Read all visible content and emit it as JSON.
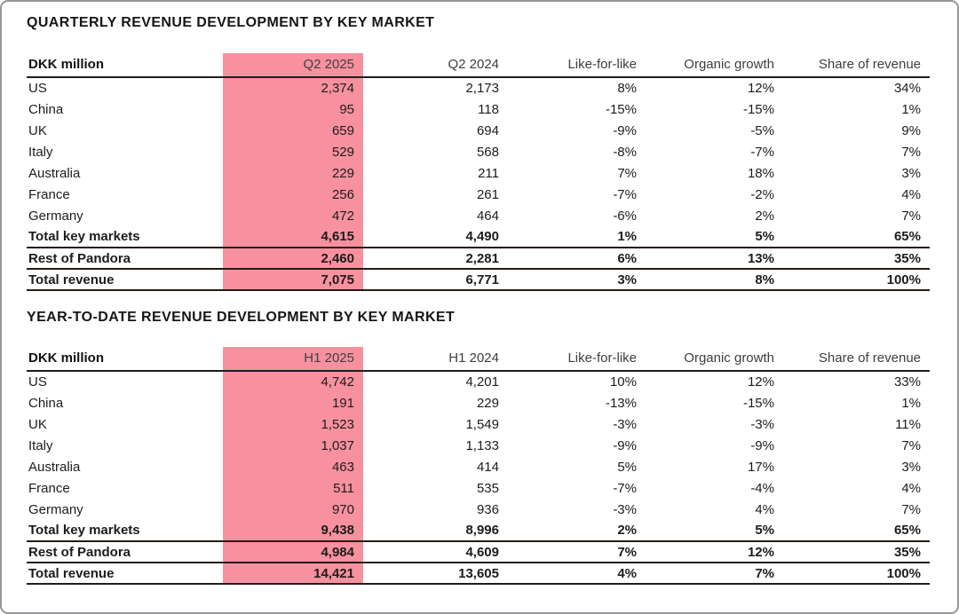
{
  "highlight_color": "#F8919F",
  "tables": [
    {
      "title": "QUARTERLY REVENUE DEVELOPMENT BY KEY MARKET",
      "columns": [
        "DKK million",
        "Q2 2025",
        "Q2 2024",
        "Like-for-like",
        "Organic growth",
        "Share of revenue"
      ],
      "highlighted_column": "Q2 2025",
      "rows": [
        {
          "label": "US",
          "values": [
            "2,374",
            "2,173",
            "8%",
            "12%",
            "34%"
          ],
          "total": false
        },
        {
          "label": "China",
          "values": [
            "95",
            "118",
            "-15%",
            "-15%",
            "1%"
          ],
          "total": false
        },
        {
          "label": "UK",
          "values": [
            "659",
            "694",
            "-9%",
            "-5%",
            "9%"
          ],
          "total": false
        },
        {
          "label": "Italy",
          "values": [
            "529",
            "568",
            "-8%",
            "-7%",
            "7%"
          ],
          "total": false
        },
        {
          "label": "Australia",
          "values": [
            "229",
            "211",
            "7%",
            "18%",
            "3%"
          ],
          "total": false
        },
        {
          "label": "France",
          "values": [
            "256",
            "261",
            "-7%",
            "-2%",
            "4%"
          ],
          "total": false
        },
        {
          "label": "Germany",
          "values": [
            "472",
            "464",
            "-6%",
            "2%",
            "7%"
          ],
          "total": false
        },
        {
          "label": "Total key markets",
          "values": [
            "4,615",
            "4,490",
            "1%",
            "5%",
            "65%"
          ],
          "total": true
        },
        {
          "label": "Rest of Pandora",
          "values": [
            "2,460",
            "2,281",
            "6%",
            "13%",
            "35%"
          ],
          "total": true
        },
        {
          "label": "Total revenue",
          "values": [
            "7,075",
            "6,771",
            "3%",
            "8%",
            "100%"
          ],
          "total": true
        }
      ]
    },
    {
      "title": "YEAR-TO-DATE REVENUE DEVELOPMENT BY KEY MARKET",
      "columns": [
        "DKK million",
        "H1 2025",
        "H1 2024",
        "Like-for-like",
        "Organic growth",
        "Share of revenue"
      ],
      "highlighted_column": "H1 2025",
      "rows": [
        {
          "label": "US",
          "values": [
            "4,742",
            "4,201",
            "10%",
            "12%",
            "33%"
          ],
          "total": false
        },
        {
          "label": "China",
          "values": [
            "191",
            "229",
            "-13%",
            "-15%",
            "1%"
          ],
          "total": false
        },
        {
          "label": "UK",
          "values": [
            "1,523",
            "1,549",
            "-3%",
            "-3%",
            "11%"
          ],
          "total": false
        },
        {
          "label": "Italy",
          "values": [
            "1,037",
            "1,133",
            "-9%",
            "-9%",
            "7%"
          ],
          "total": false
        },
        {
          "label": "Australia",
          "values": [
            "463",
            "414",
            "5%",
            "17%",
            "3%"
          ],
          "total": false
        },
        {
          "label": "France",
          "values": [
            "511",
            "535",
            "-7%",
            "-4%",
            "4%"
          ],
          "total": false
        },
        {
          "label": "Germany",
          "values": [
            "970",
            "936",
            "-3%",
            "4%",
            "7%"
          ],
          "total": false
        },
        {
          "label": "Total key markets",
          "values": [
            "9,438",
            "8,996",
            "2%",
            "5%",
            "65%"
          ],
          "total": true
        },
        {
          "label": "Rest of Pandora",
          "values": [
            "4,984",
            "4,609",
            "7%",
            "12%",
            "35%"
          ],
          "total": true
        },
        {
          "label": "Total revenue",
          "values": [
            "14,421",
            "13,605",
            "4%",
            "7%",
            "100%"
          ],
          "total": true
        }
      ]
    }
  ]
}
